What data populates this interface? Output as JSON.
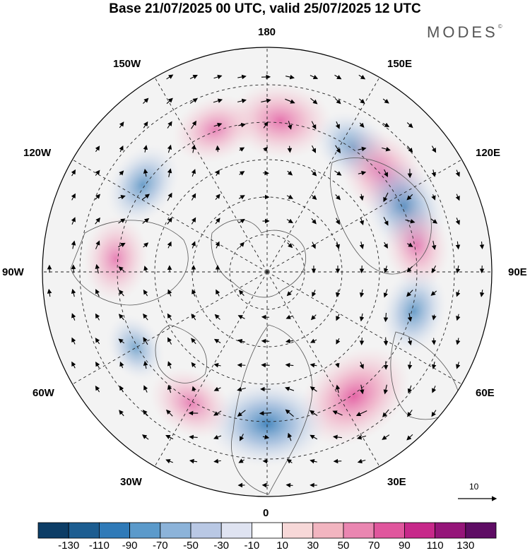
{
  "title": "Base 21/07/2025 00 UTC, valid 25/07/2025 12 UTC",
  "brand": "MODES",
  "brand_mark": "©",
  "longitude_labels": {
    "n180": "180",
    "w150": "150W",
    "e150": "150E",
    "w120": "120W",
    "e120": "120E",
    "w90": "90W",
    "e90": "90E",
    "w60": "60W",
    "e60": "60E",
    "w30": "30W",
    "e30": "30E",
    "zero": "0"
  },
  "reference_vector": {
    "label": "10"
  },
  "colorbar": {
    "colors": [
      "#0c3d66",
      "#1c5d91",
      "#2f7ab8",
      "#5b9acb",
      "#8cb3d9",
      "#b9c8e4",
      "#dfe3f1",
      "#ffffff",
      "#f7d8d8",
      "#f2b5c0",
      "#ea86b1",
      "#e0569d",
      "#c7288a",
      "#951579",
      "#5e0c64"
    ],
    "tick_labels": [
      "-130",
      "-110",
      "-90",
      "-70",
      "-50",
      "-30",
      "-10",
      "10",
      "30",
      "50",
      "70",
      "90",
      "110",
      "130"
    ]
  },
  "anomaly_map": {
    "projection": "north polar stereographic",
    "positive_color": "#e8a7b4",
    "negative_color": "#9fb4d8",
    "cells": [
      {
        "lon": 175,
        "sign": "+",
        "strength": 3
      },
      {
        "lon": -160,
        "sign": "+",
        "strength": 2
      },
      {
        "lon": 145,
        "sign": "-",
        "strength": 2
      },
      {
        "lon": 130,
        "sign": "+",
        "strength": 3
      },
      {
        "lon": 115,
        "sign": "-",
        "strength": 3
      },
      {
        "lon": 100,
        "sign": "+",
        "strength": 2
      },
      {
        "lon": -125,
        "sign": "-",
        "strength": 2
      },
      {
        "lon": -95,
        "sign": "+",
        "strength": 2
      },
      {
        "lon": 75,
        "sign": "-",
        "strength": 2
      },
      {
        "lon": 35,
        "sign": "+",
        "strength": 4
      },
      {
        "lon": 0,
        "sign": "-",
        "strength": 4
      },
      {
        "lon": -30,
        "sign": "+",
        "strength": 2
      },
      {
        "lon": -60,
        "sign": "-",
        "strength": 1
      }
    ]
  }
}
